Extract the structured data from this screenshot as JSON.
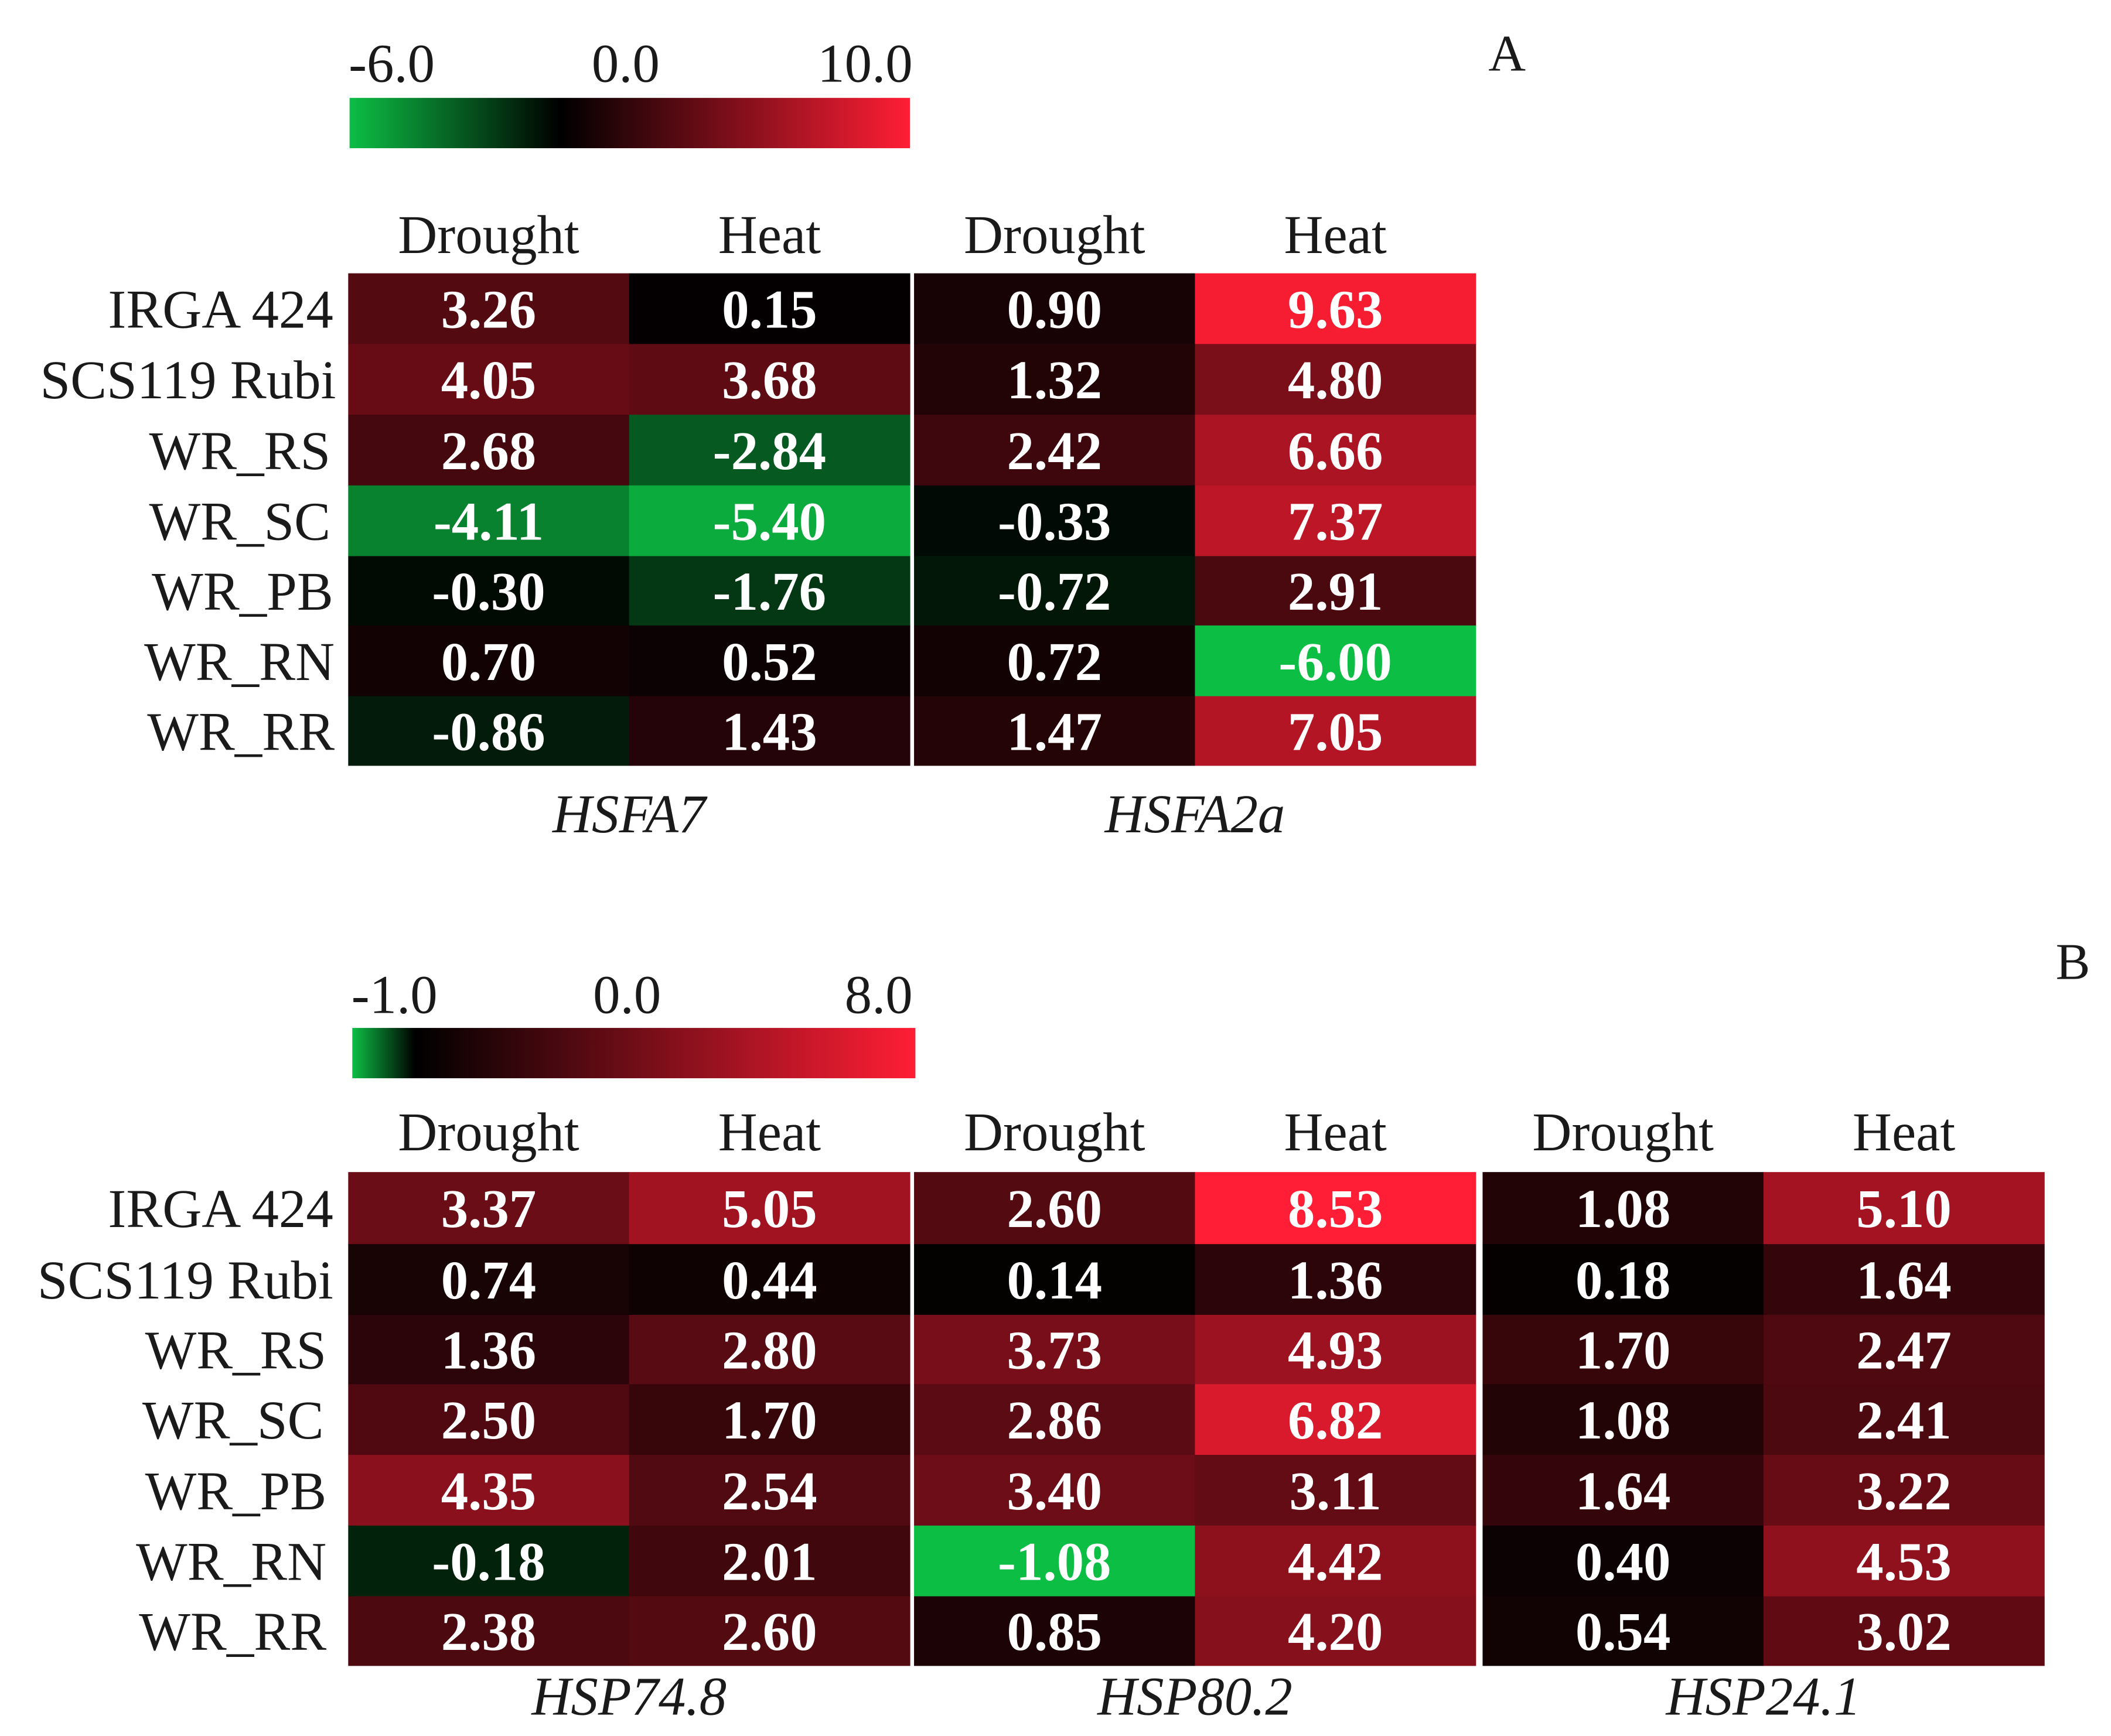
{
  "chart_data": [
    {
      "type": "heatmap",
      "panel_label": "A",
      "title": "",
      "colorbar": {
        "tick_labels": [
          "-6.0",
          "0.0",
          "10.0"
        ],
        "min": -6.0,
        "mid": 0.0,
        "max": 10.0,
        "colors": {
          "low": "#0dbe45",
          "mid": "#000000",
          "high": "#ff1e35"
        }
      },
      "rows": [
        "IRGA 424",
        "SCS119 Rubi",
        "WR_RS",
        "WR_SC",
        "WR_PB",
        "WR_RN",
        "WR_RR"
      ],
      "conditions": [
        "Drought",
        "Heat"
      ],
      "genes": [
        {
          "name": "HSFA7",
          "values": [
            [
              "3.26",
              "0.15"
            ],
            [
              "4.05",
              "3.68"
            ],
            [
              "2.68",
              "-2.84"
            ],
            [
              "-4.11",
              "-5.40"
            ],
            [
              "-0.30",
              "-1.76"
            ],
            [
              "0.70",
              "0.52"
            ],
            [
              "-0.86",
              "1.43"
            ]
          ]
        },
        {
          "name": "HSFA2a",
          "values": [
            [
              "0.90",
              "9.63"
            ],
            [
              "1.32",
              "4.80"
            ],
            [
              "2.42",
              "6.66"
            ],
            [
              "-0.33",
              "7.37"
            ],
            [
              "-0.72",
              "2.91"
            ],
            [
              "0.72",
              "-6.00"
            ],
            [
              "1.47",
              "7.05"
            ]
          ]
        }
      ]
    },
    {
      "type": "heatmap",
      "panel_label": "B",
      "title": "",
      "colorbar": {
        "tick_labels": [
          "-1.0",
          "0.0",
          "8.0"
        ],
        "min": -1.0,
        "mid": 0.0,
        "max": 8.0,
        "colors": {
          "low": "#0dbe45",
          "mid": "#000000",
          "high": "#ff1e35"
        }
      },
      "rows": [
        "IRGA 424",
        "SCS119 Rubi",
        "WR_RS",
        "WR_SC",
        "WR_PB",
        "WR_RN",
        "WR_RR"
      ],
      "conditions": [
        "Drought",
        "Heat"
      ],
      "genes": [
        {
          "name": "HSP74.8",
          "values": [
            [
              "3.37",
              "5.05"
            ],
            [
              "0.74",
              "0.44"
            ],
            [
              "1.36",
              "2.80"
            ],
            [
              "2.50",
              "1.70"
            ],
            [
              "4.35",
              "2.54"
            ],
            [
              "-0.18",
              "2.01"
            ],
            [
              "2.38",
              "2.60"
            ]
          ]
        },
        {
          "name": "HSP80.2",
          "values": [
            [
              "2.60",
              "8.53"
            ],
            [
              "0.14",
              "1.36"
            ],
            [
              "3.73",
              "4.93"
            ],
            [
              "2.86",
              "6.82"
            ],
            [
              "3.40",
              "3.11"
            ],
            [
              "-1.08",
              "4.42"
            ],
            [
              "0.85",
              "4.20"
            ]
          ]
        },
        {
          "name": "HSP24.1",
          "values": [
            [
              "1.08",
              "5.10"
            ],
            [
              "0.18",
              "1.64"
            ],
            [
              "1.70",
              "2.47"
            ],
            [
              "1.08",
              "2.41"
            ],
            [
              "1.64",
              "3.22"
            ],
            [
              "0.40",
              "4.53"
            ],
            [
              "0.54",
              "3.02"
            ]
          ]
        }
      ]
    }
  ]
}
